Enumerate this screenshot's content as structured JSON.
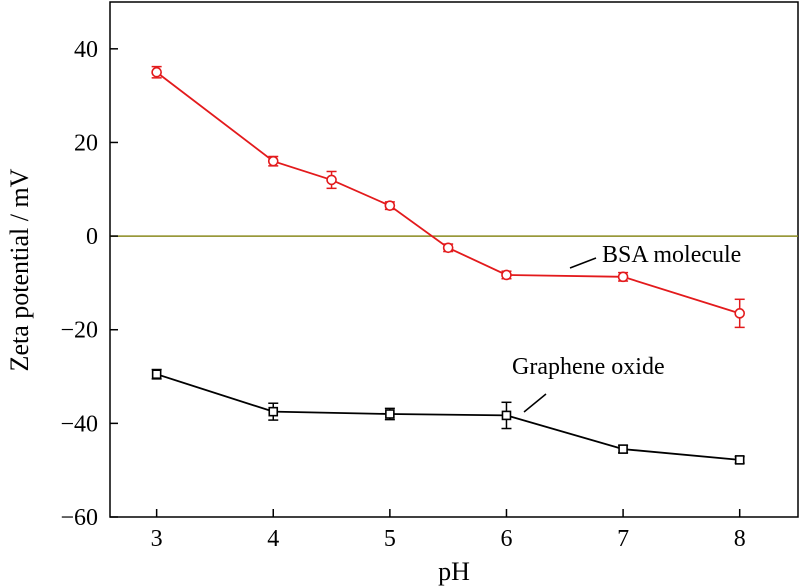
{
  "chart_data": {
    "type": "line",
    "xlabel": "pH",
    "ylabel": "Zeta potential / mV",
    "xlim": [
      2.6,
      8.5
    ],
    "ylim": [
      -60,
      50
    ],
    "xticks": [
      3,
      4,
      5,
      6,
      7,
      8
    ],
    "yticks": [
      -60,
      -40,
      -20,
      0,
      20,
      40
    ],
    "ytick_labels": [
      "−60",
      "−40",
      "−20",
      "0",
      "20",
      "40"
    ],
    "grid": false,
    "zero_line": {
      "y": 0,
      "color": "#8a8a1e"
    },
    "series": [
      {
        "name": "BSA molecule",
        "color": "#e31a1c",
        "marker": "circle",
        "x": [
          3,
          4,
          4.5,
          5,
          5.5,
          6,
          7,
          8
        ],
        "y": [
          35,
          16,
          12,
          6.5,
          -2.5,
          -8.3,
          -8.7,
          -16.5
        ],
        "err": [
          1.2,
          1.0,
          1.8,
          0.8,
          0.8,
          0.8,
          0.9,
          3.0
        ]
      },
      {
        "name": "Graphene oxide",
        "color": "#000000",
        "marker": "square",
        "x": [
          3,
          4,
          5,
          6,
          7,
          8
        ],
        "y": [
          -29.5,
          -37.5,
          -38,
          -38.3,
          -45.5,
          -47.8
        ],
        "err": [
          1.0,
          1.8,
          1.2,
          2.8,
          0.8,
          0.7
        ]
      }
    ]
  }
}
